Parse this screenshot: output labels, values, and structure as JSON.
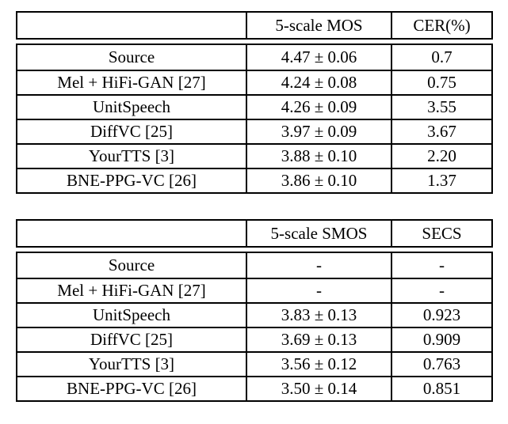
{
  "page": {
    "background_color": "#ffffff",
    "text_color": "#000000",
    "border_color": "#000000"
  },
  "table_mos": {
    "headers": {
      "system": "",
      "metric1": "5-scale MOS",
      "metric2": "CER(%)"
    },
    "rows": [
      {
        "system": "Source",
        "metric1": "4.47 ± 0.06",
        "metric2": "0.7"
      },
      {
        "system": "Mel + HiFi-GAN [27]",
        "metric1": "4.24 ± 0.08",
        "metric2": "0.75"
      },
      {
        "system": "UnitSpeech",
        "metric1": "4.26 ± 0.09",
        "metric2": "3.55"
      },
      {
        "system": "DiffVC [25]",
        "metric1": "3.97 ± 0.09",
        "metric2": "3.67"
      },
      {
        "system": "YourTTS [3]",
        "metric1": "3.88 ± 0.10",
        "metric2": "2.20"
      },
      {
        "system": "BNE-PPG-VC [26]",
        "metric1": "3.86 ± 0.10",
        "metric2": "1.37"
      }
    ]
  },
  "table_smos": {
    "headers": {
      "system": "",
      "metric1": "5-scale SMOS",
      "metric2": "SECS"
    },
    "rows": [
      {
        "system": "Source",
        "metric1": "-",
        "metric2": "-"
      },
      {
        "system": "Mel + HiFi-GAN [27]",
        "metric1": "-",
        "metric2": "-"
      },
      {
        "system": "UnitSpeech",
        "metric1": "3.83 ± 0.13",
        "metric2": "0.923"
      },
      {
        "system": "DiffVC [25]",
        "metric1": "3.69 ± 0.13",
        "metric2": "0.909"
      },
      {
        "system": "YourTTS [3]",
        "metric1": "3.56 ± 0.12",
        "metric2": "0.763"
      },
      {
        "system": "BNE-PPG-VC [26]",
        "metric1": "3.50 ± 0.14",
        "metric2": "0.851"
      }
    ]
  }
}
